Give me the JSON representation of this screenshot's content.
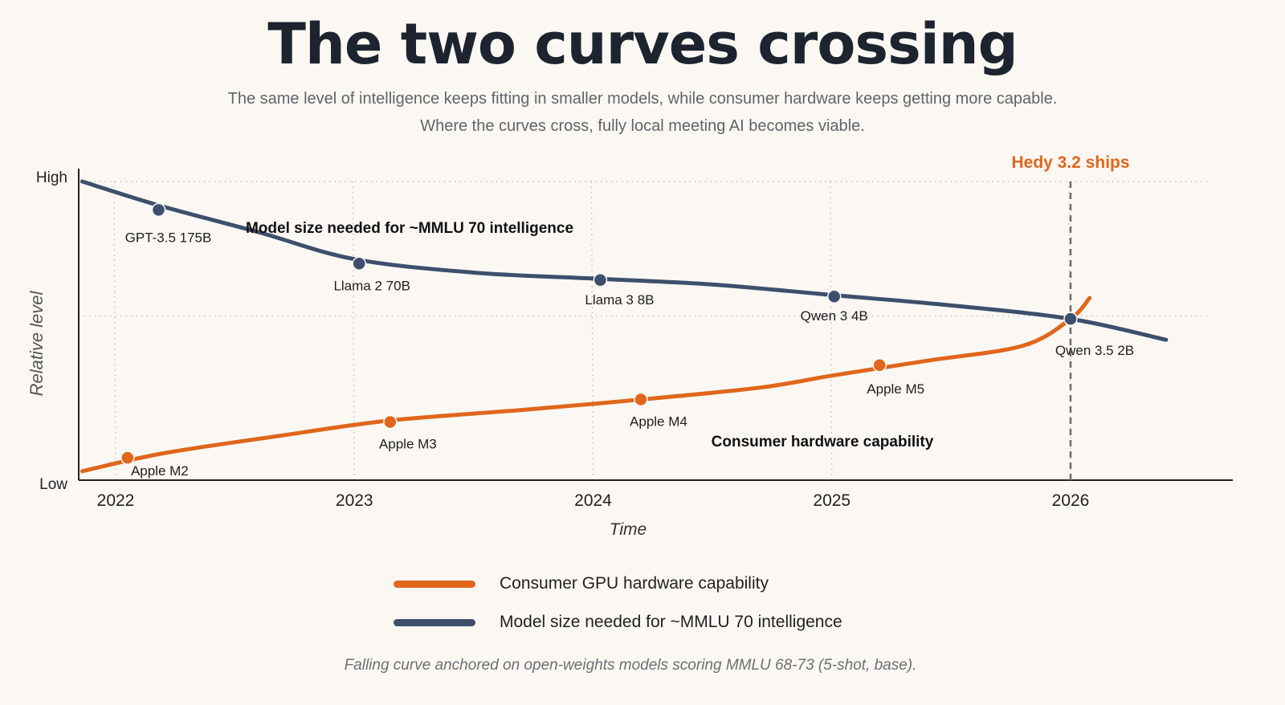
{
  "chart_data": {
    "type": "line",
    "title": "The two curves crossing",
    "subtitle": [
      "The same level of intelligence keeps fitting in smaller models, while consumer hardware keeps getting more capable.",
      "Where the curves cross, fully local meeting AI becomes viable."
    ],
    "xlabel": "Time",
    "ylabel": "Relative level",
    "y_tick_labels": {
      "high": "High",
      "low": "Low"
    },
    "xlim": [
      2021.86,
      2026.65
    ],
    "ylim": [
      0,
      1
    ],
    "x_ticks": [
      2022,
      2023,
      2024,
      2025,
      2026
    ],
    "x_tick_labels": [
      "2022",
      "2023",
      "2024",
      "2025",
      "2026"
    ],
    "grid": {
      "vertical_dotted": true,
      "horizontal_dotted": [
        1.0,
        0.55
      ]
    },
    "series": [
      {
        "name": "Model size needed for ~MMLU 70 intelligence",
        "color": "#3d4f6c",
        "inline_label": "Model size needed for ~MMLU 70 intelligence",
        "curve": [
          [
            2021.86,
            1.0
          ],
          [
            2022.18,
            0.92
          ],
          [
            2022.6,
            0.83
          ],
          [
            2023.0,
            0.74
          ],
          [
            2023.5,
            0.695
          ],
          [
            2024.0,
            0.675
          ],
          [
            2024.5,
            0.655
          ],
          [
            2025.0,
            0.62
          ],
          [
            2025.5,
            0.585
          ],
          [
            2026.0,
            0.54
          ],
          [
            2026.4,
            0.47
          ]
        ],
        "points": [
          {
            "x": 2022.18,
            "y": 0.905,
            "label": "GPT-3.5 175B"
          },
          {
            "x": 2023.02,
            "y": 0.725,
            "label": "Llama 2 70B"
          },
          {
            "x": 2024.03,
            "y": 0.67,
            "label": "Llama 3 8B"
          },
          {
            "x": 2025.01,
            "y": 0.615,
            "label": "Qwen 3 4B"
          },
          {
            "x": 2026.0,
            "y": 0.54,
            "label": "Qwen 3.5 2B"
          }
        ]
      },
      {
        "name": "Consumer hardware capability",
        "color": "#e0661c",
        "inline_label": "Consumer hardware capability",
        "curve": [
          [
            2021.86,
            0.03
          ],
          [
            2022.2,
            0.09
          ],
          [
            2022.7,
            0.15
          ],
          [
            2023.15,
            0.2
          ],
          [
            2023.7,
            0.235
          ],
          [
            2024.2,
            0.27
          ],
          [
            2024.7,
            0.31
          ],
          [
            2025.0,
            0.35
          ],
          [
            2025.4,
            0.4
          ],
          [
            2025.8,
            0.45
          ],
          [
            2026.0,
            0.54
          ],
          [
            2026.08,
            0.61
          ]
        ],
        "points": [
          {
            "x": 2022.05,
            "y": 0.075,
            "label": "Apple M2"
          },
          {
            "x": 2023.15,
            "y": 0.195,
            "label": "Apple M3"
          },
          {
            "x": 2024.2,
            "y": 0.27,
            "label": "Apple M4"
          },
          {
            "x": 2025.2,
            "y": 0.385,
            "label": "Apple M5"
          }
        ]
      }
    ],
    "annotation": {
      "x": 2026.0,
      "label": "Hedy 3.2 ships",
      "color": "#e0661c",
      "style": "dashed-vertical"
    },
    "legend": {
      "placement": "bottom",
      "entries": [
        {
          "label": "Consumer GPU hardware capability",
          "color": "#e0661c"
        },
        {
          "label": "Model size needed for ~MMLU 70 intelligence",
          "color": "#3d4f6c"
        }
      ]
    },
    "footnote": "Falling curve anchored on open-weights models scoring MMLU 68-73 (5-shot, base)."
  }
}
